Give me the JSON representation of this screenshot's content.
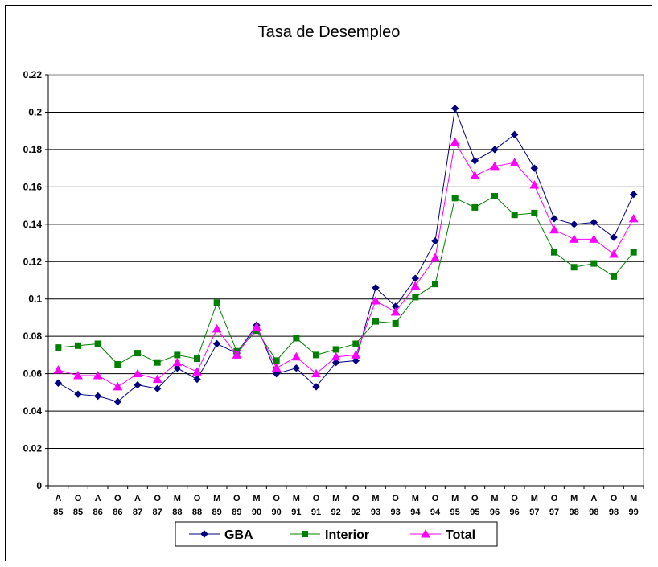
{
  "chart_data": {
    "type": "line",
    "title": "Tasa de Desempleo",
    "xlabel": "",
    "ylabel": "",
    "ylim": [
      0,
      0.22
    ],
    "yticks": [
      "0",
      "0.02",
      "0.04",
      "0.06",
      "0.08",
      "0.1",
      "0.12",
      "0.14",
      "0.16",
      "0.18",
      "0.2",
      "0.22"
    ],
    "grid": true,
    "legend_position": "bottom",
    "categories": [
      {
        "month": "A",
        "year": "85"
      },
      {
        "month": "O",
        "year": "85"
      },
      {
        "month": "A",
        "year": "86"
      },
      {
        "month": "O",
        "year": "86"
      },
      {
        "month": "A",
        "year": "87"
      },
      {
        "month": "O",
        "year": "87"
      },
      {
        "month": "M",
        "year": "88"
      },
      {
        "month": "O",
        "year": "88"
      },
      {
        "month": "M",
        "year": "89"
      },
      {
        "month": "O",
        "year": "89"
      },
      {
        "month": "M",
        "year": "90"
      },
      {
        "month": "O",
        "year": "90"
      },
      {
        "month": "M",
        "year": "91"
      },
      {
        "month": "O",
        "year": "91"
      },
      {
        "month": "M",
        "year": "92"
      },
      {
        "month": "O",
        "year": "92"
      },
      {
        "month": "M",
        "year": "93"
      },
      {
        "month": "O",
        "year": "93"
      },
      {
        "month": "M",
        "year": "94"
      },
      {
        "month": "O",
        "year": "94"
      },
      {
        "month": "M",
        "year": "95"
      },
      {
        "month": "O",
        "year": "95"
      },
      {
        "month": "M",
        "year": "96"
      },
      {
        "month": "O",
        "year": "96"
      },
      {
        "month": "M",
        "year": "97"
      },
      {
        "month": "O",
        "year": "97"
      },
      {
        "month": "M",
        "year": "98"
      },
      {
        "month": "A",
        "year": "98"
      },
      {
        "month": "O",
        "year": "98"
      },
      {
        "month": "M",
        "year": "99"
      }
    ],
    "series": [
      {
        "name": "GBA",
        "color": "#000080",
        "marker": "diamond",
        "values": [
          0.055,
          0.049,
          0.048,
          0.045,
          0.054,
          0.052,
          0.063,
          0.057,
          0.076,
          0.071,
          0.086,
          0.06,
          0.063,
          0.053,
          0.066,
          0.067,
          0.106,
          0.096,
          0.111,
          0.131,
          0.202,
          0.174,
          0.18,
          0.188,
          0.17,
          0.143,
          0.14,
          0.141,
          0.133,
          0.156
        ]
      },
      {
        "name": "Interior",
        "color": "#008000",
        "marker": "square",
        "values": [
          0.074,
          0.075,
          0.076,
          0.065,
          0.071,
          0.066,
          0.07,
          0.068,
          0.098,
          0.072,
          0.083,
          0.067,
          0.079,
          0.07,
          0.073,
          0.076,
          0.088,
          0.087,
          0.101,
          0.108,
          0.154,
          0.149,
          0.155,
          0.145,
          0.146,
          0.125,
          0.117,
          0.119,
          0.112,
          0.125
        ]
      },
      {
        "name": "Total",
        "color": "#FF00FF",
        "marker": "triangle",
        "values": [
          0.062,
          0.059,
          0.059,
          0.053,
          0.06,
          0.057,
          0.066,
          0.061,
          0.084,
          0.07,
          0.085,
          0.063,
          0.069,
          0.06,
          0.069,
          0.07,
          0.099,
          0.093,
          0.107,
          0.122,
          0.184,
          0.166,
          0.171,
          0.173,
          0.161,
          0.137,
          0.132,
          0.132,
          0.124,
          0.143
        ]
      }
    ]
  }
}
